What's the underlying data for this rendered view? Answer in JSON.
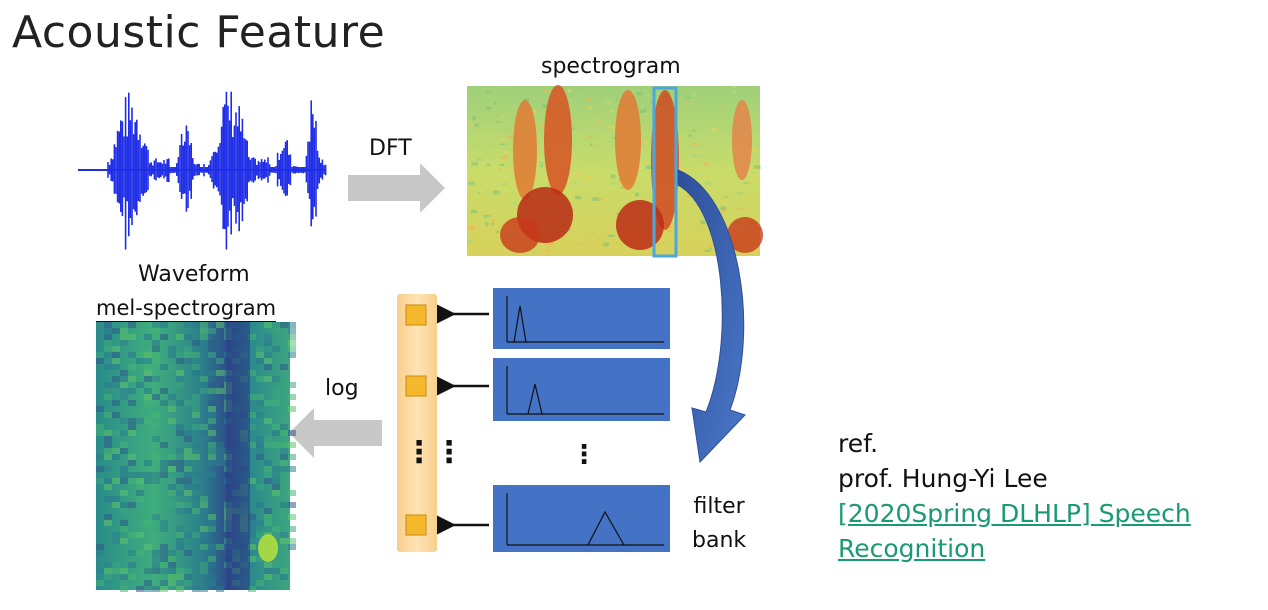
{
  "slide": {
    "title": "Acoustic Feature"
  },
  "diagram": {
    "labels": {
      "spectrogram": "spectrogram",
      "waveform": "Waveform",
      "mel_spectrogram": "mel-spectrogram",
      "dft": "DFT",
      "log": "log",
      "filter_bank_line1": "filter",
      "filter_bank_line2": "bank",
      "vertical_dots": "⋮",
      "column_dots": "⋮⋮"
    },
    "colors": {
      "waveform": "#1f2ee6",
      "filter_panel": "#4472c4",
      "feature_column": "#fbd79b",
      "feature_cell": "#f5b82d",
      "arrow_gray": "#c8c8c8",
      "curved_arrow": "#3c5fa8",
      "highlight_frame": "#4aa7e0"
    }
  },
  "reference": {
    "prefix": "ref.",
    "author": "prof. Hung-Yi Lee",
    "link_line1": "[2020Spring DLHLP] Speech",
    "link_line2": "Recognition"
  }
}
